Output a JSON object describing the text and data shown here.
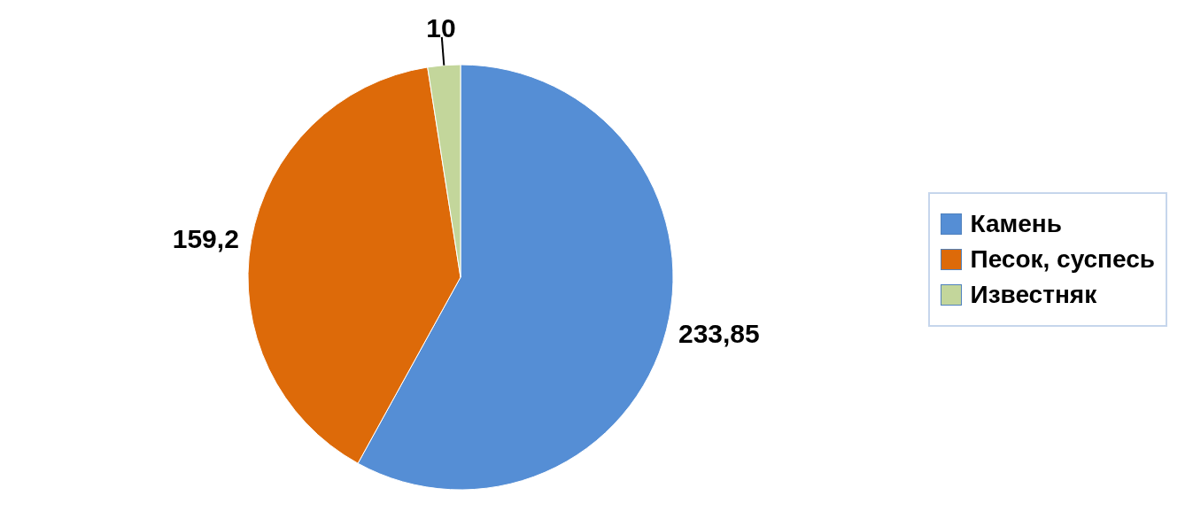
{
  "chart_data": {
    "type": "pie",
    "categories": [
      "Камень",
      "Песок, суспесь",
      "Известняк"
    ],
    "values": [
      233.85,
      159.2,
      10
    ],
    "colors": [
      "#558ed5",
      "#dd6a09",
      "#c3d69b"
    ],
    "value_labels": [
      "233,85",
      "159,2",
      "10"
    ],
    "legend": "right"
  }
}
